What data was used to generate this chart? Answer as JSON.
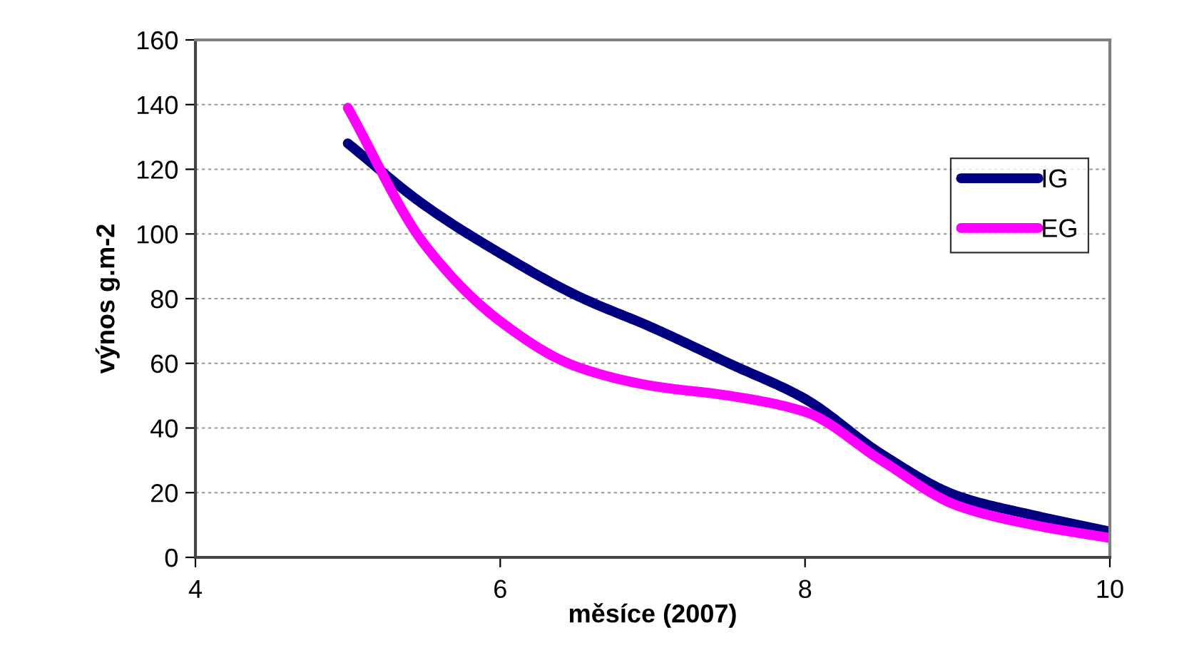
{
  "chart_data": {
    "type": "line",
    "xlabel": "měsíce (2007)",
    "ylabel": "výnos g.m-2",
    "xlim": [
      4,
      10
    ],
    "xticks": [
      4,
      6,
      8,
      10
    ],
    "ylim": [
      0,
      160
    ],
    "yticks": [
      0,
      20,
      40,
      60,
      80,
      100,
      120,
      140,
      160
    ],
    "grid": "y",
    "legend": "right",
    "marker": "none",
    "line_style": "solid",
    "series": [
      {
        "name": "IG",
        "color": "#000080",
        "x": [
          5,
          5.5,
          6,
          6.5,
          7,
          7.5,
          8,
          8.5,
          9,
          9.5,
          10
        ],
        "values": [
          128,
          109,
          94,
          81,
          71,
          60,
          49,
          32,
          19,
          13,
          8
        ]
      },
      {
        "name": "EG",
        "color": "#ff00ff",
        "x": [
          5,
          5.5,
          6,
          6.5,
          7,
          7.5,
          8,
          8.5,
          9,
          9.5,
          10
        ],
        "values": [
          139,
          97,
          73,
          59,
          53,
          50,
          45,
          30,
          16,
          10,
          6
        ]
      }
    ]
  }
}
